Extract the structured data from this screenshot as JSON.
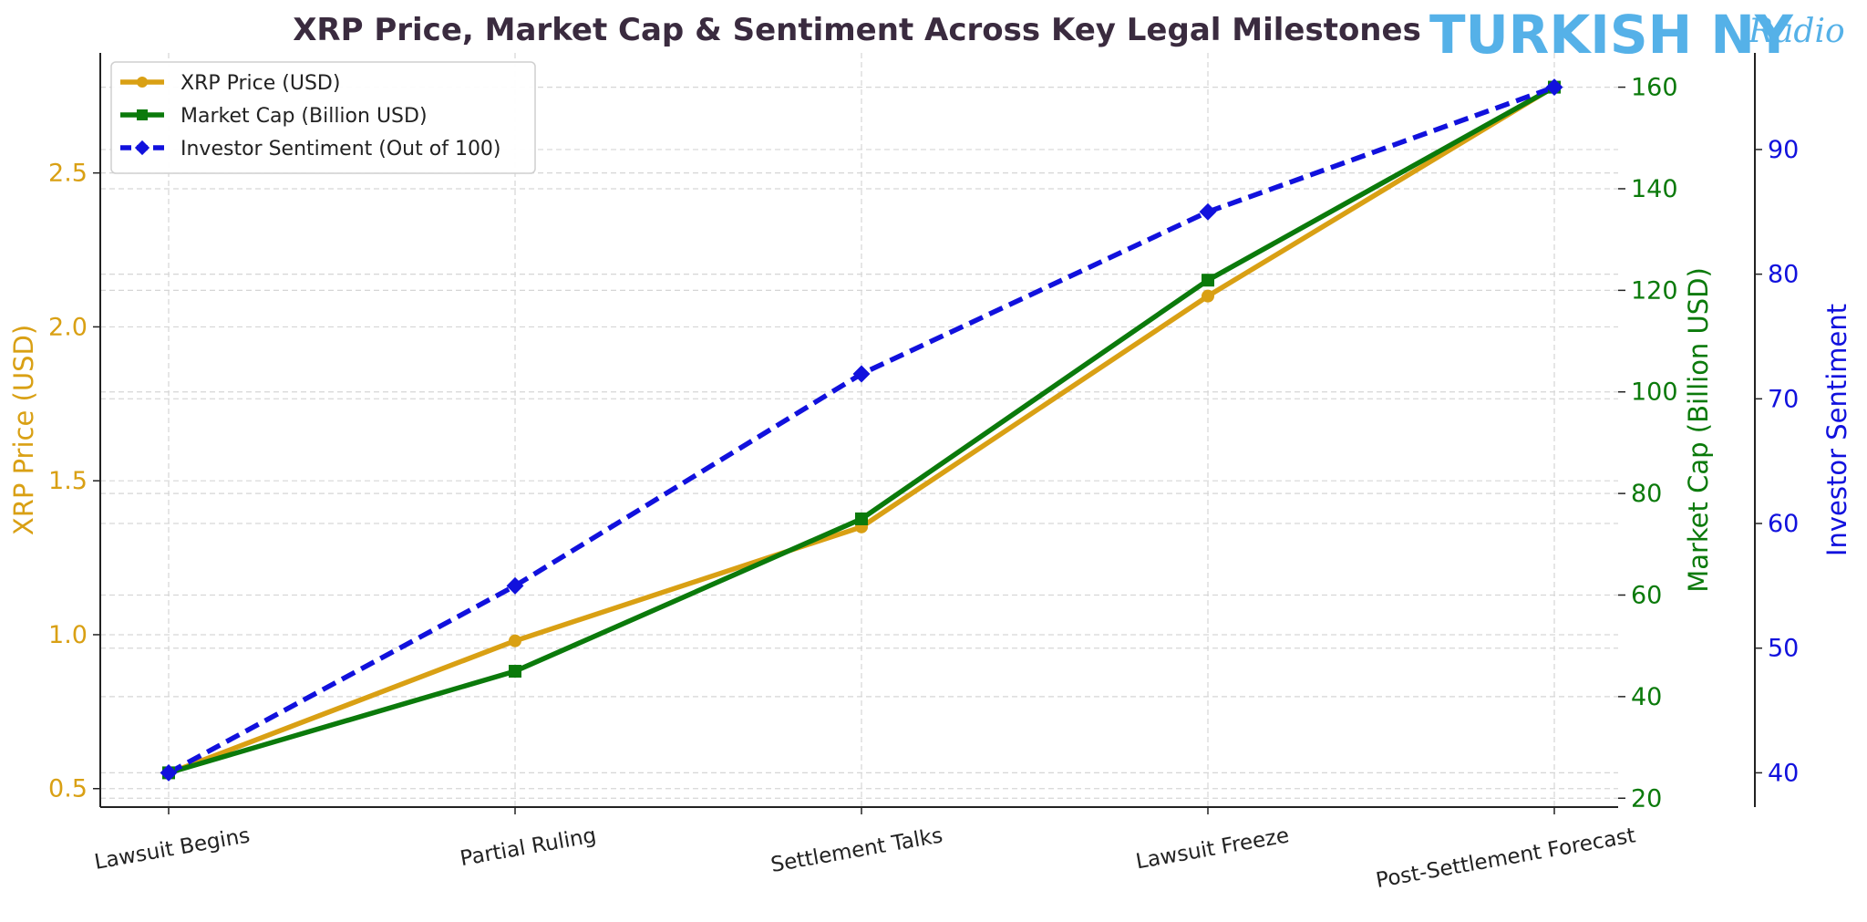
{
  "logo": {
    "main": "TURKISH NY",
    "script": "Radio"
  },
  "colors": {
    "price": "#d9a014",
    "marketcap": "#0b7a0b",
    "sentiment": "#1111dd",
    "title": "#3a2b3f"
  },
  "chart_data": {
    "type": "line",
    "title": "XRP Price, Market Cap & Sentiment Across Key Legal Milestones",
    "categories": [
      "Lawsuit Begins",
      "Partial Ruling",
      "Settlement Talks",
      "Lawsuit Freeze",
      "Post-Settlement Forecast"
    ],
    "series": [
      {
        "name": "XRP Price (USD)",
        "axis": "left",
        "marker": "circle",
        "style": "solid",
        "values": [
          0.55,
          0.98,
          1.35,
          2.1,
          2.78
        ]
      },
      {
        "name": "Market Cap (Billion USD)",
        "axis": "right1",
        "marker": "square",
        "style": "solid",
        "values": [
          25,
          45,
          75,
          122,
          160
        ]
      },
      {
        "name": "Investor Sentiment (Out of 100)",
        "axis": "right2",
        "marker": "diamond",
        "style": "dashed",
        "values": [
          40,
          55,
          72,
          85,
          95
        ]
      }
    ],
    "axes": {
      "left": {
        "label": "XRP Price (USD)",
        "ylim": [
          0.44,
          2.89
        ],
        "ticks": [
          "0.5",
          "1.0",
          "1.5",
          "2.0",
          "2.5"
        ]
      },
      "right1": {
        "label": "Market Cap (Billion USD)",
        "ylim": [
          18.25,
          166.75
        ],
        "ticks": [
          "20",
          "40",
          "60",
          "80",
          "100",
          "120",
          "140",
          "160"
        ]
      },
      "right2": {
        "label": "Investor Sentiment",
        "ylim": [
          37.25,
          97.75
        ],
        "ticks": [
          "40",
          "50",
          "60",
          "70",
          "80",
          "90"
        ]
      }
    },
    "grid": true,
    "legend": "top-left"
  }
}
